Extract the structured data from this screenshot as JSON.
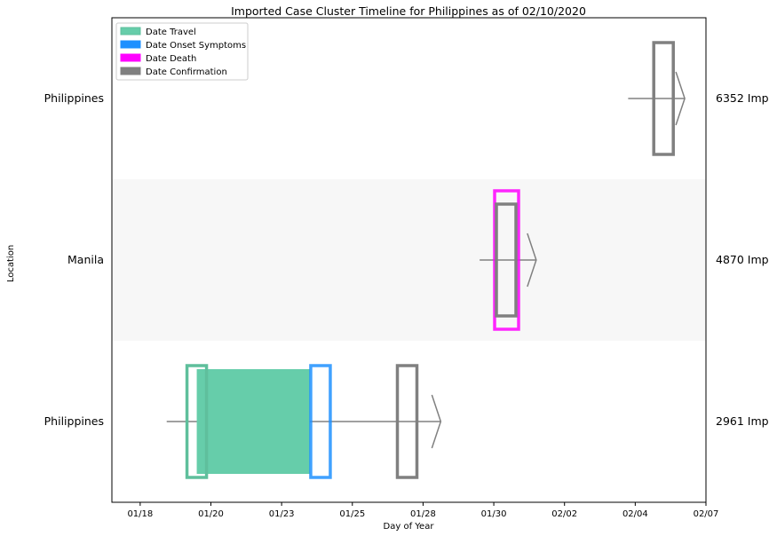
{
  "chart_data": {
    "type": "timeline",
    "title": "Imported Case Cluster Timeline for Philippines as of 02/10/2020",
    "xlabel": "Day of Year",
    "ylabel": "Location",
    "x_tick_labels": [
      "01/18",
      "01/20",
      "01/23",
      "01/25",
      "01/28",
      "01/30",
      "02/02",
      "02/04",
      "02/07"
    ],
    "x_tick_days": [
      18,
      20,
      22,
      24,
      26,
      28,
      30,
      32,
      34
    ],
    "xlim_days": [
      17.2,
      34
    ],
    "grid": false,
    "legend_placement": "top-left",
    "legend": [
      {
        "label": "Date Travel",
        "color": "#66cdaa"
      },
      {
        "label": "Date Onset Symptoms",
        "color": "#1e90ff"
      },
      {
        "label": "Date Death",
        "color": "#ff00ff"
      },
      {
        "label": "Date Confirmation",
        "color": "#808080"
      }
    ],
    "rows": [
      {
        "location": "Philippines",
        "case_label": "6352 Imp",
        "shaded": false,
        "line_start_day": 31.8,
        "arrow_day": 33.4,
        "travel_start": null,
        "travel_end": null,
        "onset": null,
        "death": null,
        "confirmation": 32.8
      },
      {
        "location": "Manila",
        "case_label": "4870 Imp",
        "shaded": true,
        "line_start_day": 27.6,
        "arrow_day": 29.2,
        "travel_start": null,
        "travel_end": null,
        "onset": null,
        "death": 28.35,
        "confirmation": 28.35
      },
      {
        "location": "Philippines",
        "case_label": "2961 Imp",
        "shaded": false,
        "line_start_day": 18.75,
        "arrow_day": 26.5,
        "travel_start": 19.6,
        "travel_end": 22.8,
        "onset": 23.1,
        "death": null,
        "confirmation": 25.55
      }
    ],
    "colors": {
      "travel": "#66cdaa",
      "travel_outline": "#5fbf9c",
      "onset": "#1e90ff",
      "death": "#ff00ff",
      "confirmation": "#808080",
      "line": "#808080",
      "shade": "#f7f7f7"
    }
  }
}
